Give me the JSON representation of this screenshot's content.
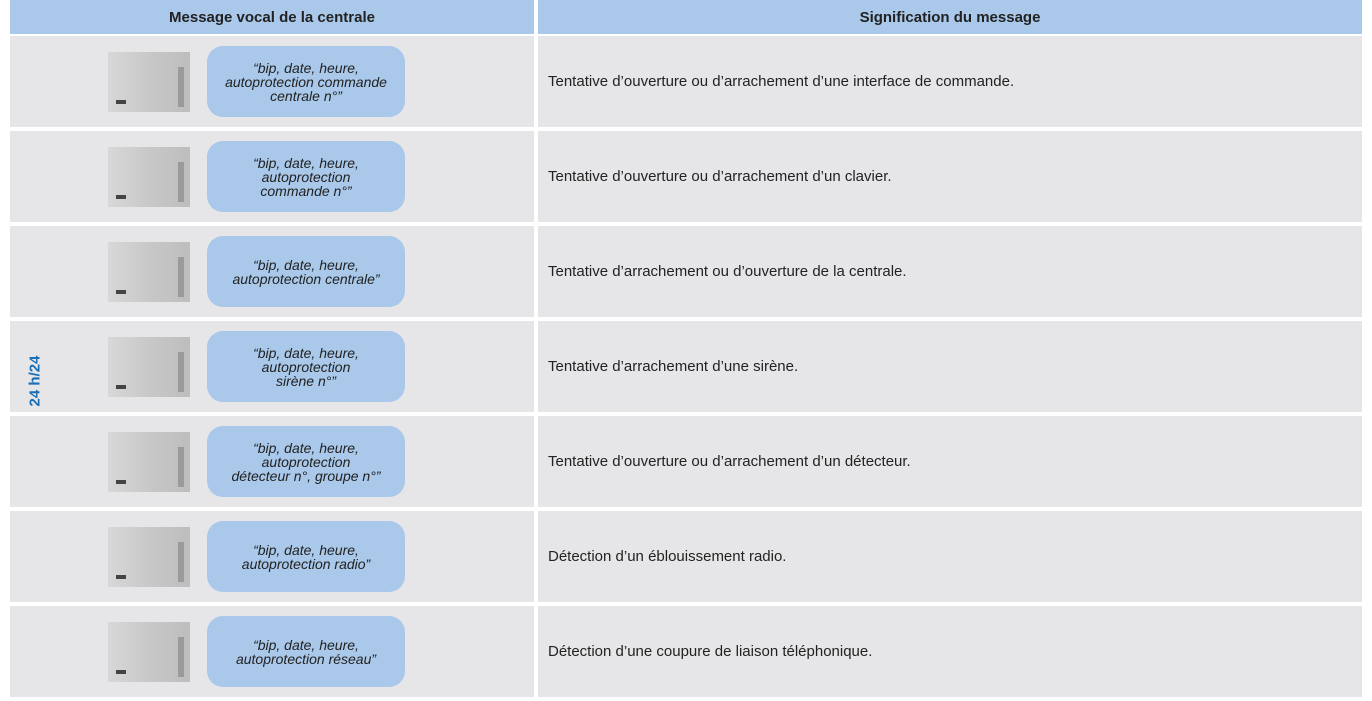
{
  "header": {
    "columns": [
      "Message vocal de la centrale",
      "Signification du message"
    ]
  },
  "side_label": "24 h/24",
  "rows": [
    {
      "message": "“bip, date, heure,\nautoprotection commande\ncentrale n°”",
      "meaning": "Tentative d’ouverture ou d’arrachement d’une interface de commande."
    },
    {
      "message": "“bip, date, heure,\nautoprotection\ncommande n°”",
      "meaning": "Tentative d’ouverture ou d’arrachement d’un clavier."
    },
    {
      "message": "“bip, date, heure,\nautoprotection centrale”",
      "meaning": "Tentative d’arrachement ou d’ouverture de la centrale."
    },
    {
      "message": "“bip, date, heure,\nautoprotection\nsirène n°”",
      "meaning": "Tentative d’arrachement d’une sirène."
    },
    {
      "message": "“bip, date, heure,\nautoprotection\ndétecteur n°, groupe n°”",
      "meaning": "Tentative d’ouverture ou d’arrachement d’un détecteur."
    },
    {
      "message": "“bip, date, heure,\nautoprotection radio”",
      "meaning": "Détection d’un éblouissement radio."
    },
    {
      "message": "“bip, date, heure,\nautoprotection réseau”",
      "meaning": "Détection d’une coupure de liaison téléphonique."
    }
  ]
}
